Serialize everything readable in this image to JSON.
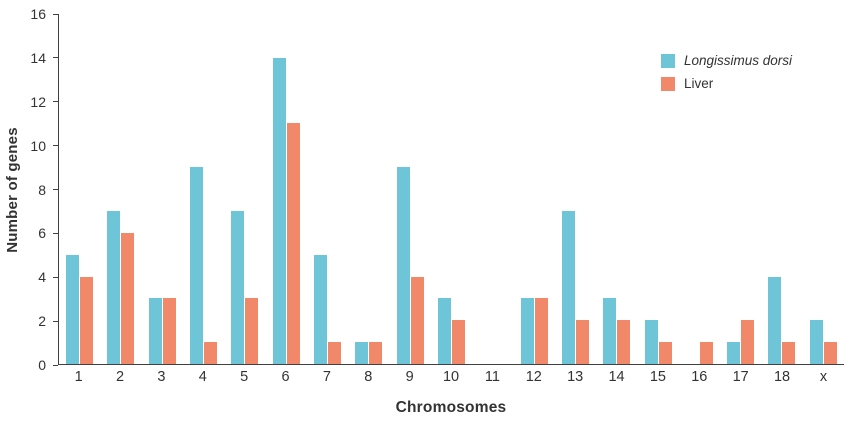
{
  "chart_data": {
    "type": "bar",
    "categories": [
      "1",
      "2",
      "3",
      "4",
      "5",
      "6",
      "7",
      "8",
      "9",
      "10",
      "11",
      "12",
      "13",
      "14",
      "15",
      "16",
      "17",
      "18",
      "x"
    ],
    "series": [
      {
        "name": "Longissimus dorsi",
        "color": "#6EC5D8",
        "values": [
          5,
          7,
          3,
          9,
          7,
          14,
          5,
          1,
          9,
          3,
          0,
          3,
          7,
          3,
          2,
          0,
          1,
          4,
          2
        ]
      },
      {
        "name": "Liver",
        "color": "#F2886A",
        "values": [
          4,
          6,
          3,
          1,
          3,
          11,
          1,
          1,
          4,
          2,
          0,
          3,
          2,
          2,
          1,
          1,
          2,
          1,
          1
        ]
      }
    ],
    "title": "",
    "xlabel": "Chromosomes",
    "ylabel": "Number of genes",
    "ylim": [
      0,
      16
    ],
    "ytick_step": 2,
    "yticks": [
      0,
      2,
      4,
      6,
      8,
      10,
      12,
      14,
      16
    ],
    "grid": false,
    "legend_position": "top-right",
    "axis_color": "#404040",
    "text_color": "#333333"
  }
}
